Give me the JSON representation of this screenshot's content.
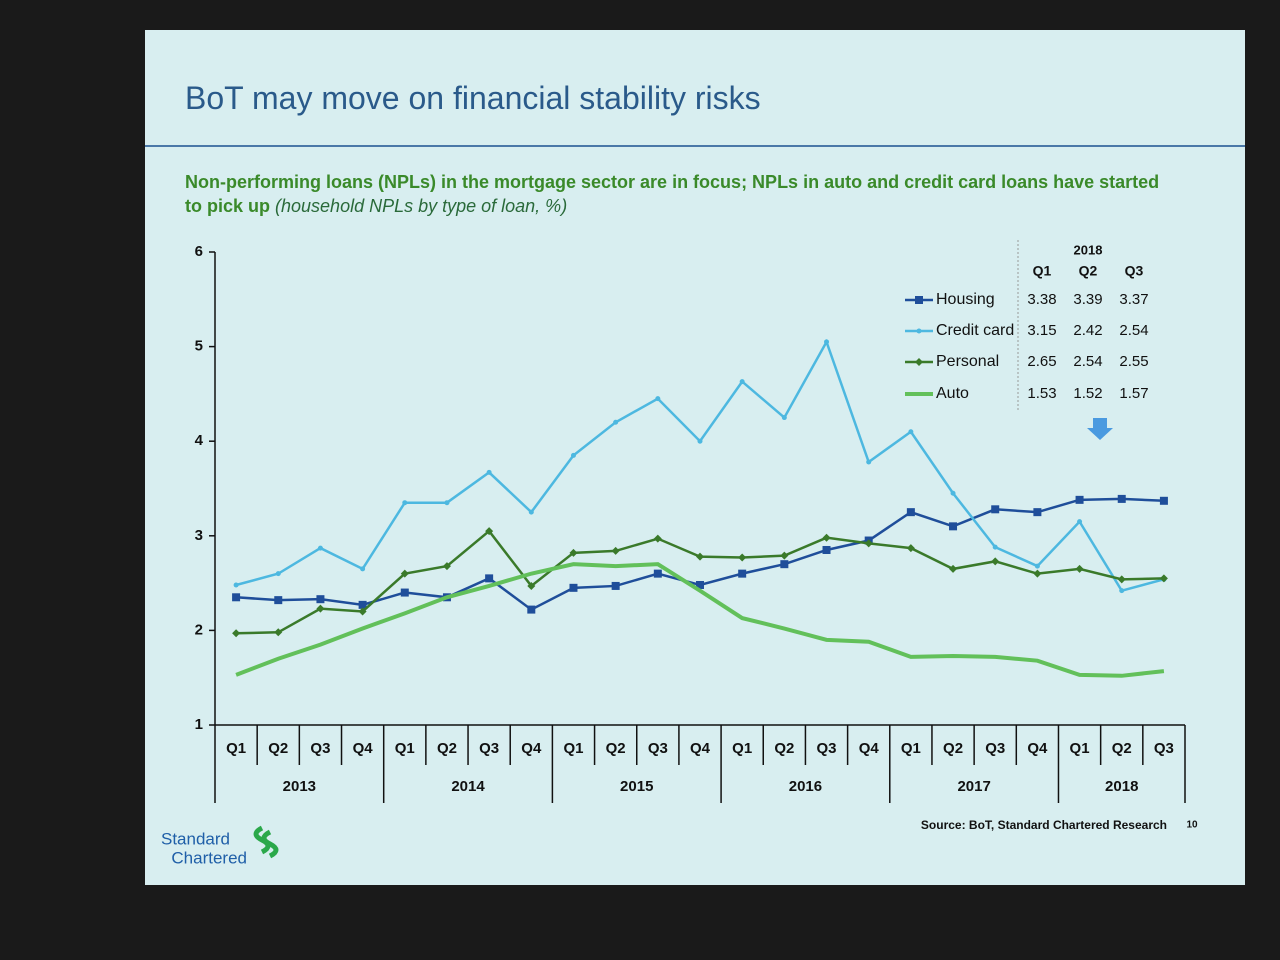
{
  "slide": {
    "title": "BoT may move on financial stability risks",
    "source": "Source: BoT, Standard Chartered Research",
    "page": 10,
    "logo": [
      "Standard",
      "Chartered"
    ]
  },
  "chart_data": {
    "type": "line",
    "subtitle": "Non-performing loans (NPLs) in the mortgage sector are in focus; NPLs in auto and credit card loans have started to pick up",
    "subtitle_note": "(household NPLs by type of loan, %)",
    "categories": [
      "Q1",
      "Q2",
      "Q3",
      "Q4",
      "Q1",
      "Q2",
      "Q3",
      "Q4",
      "Q1",
      "Q2",
      "Q3",
      "Q4",
      "Q1",
      "Q2",
      "Q3",
      "Q4",
      "Q1",
      "Q2",
      "Q3",
      "Q4",
      "Q1",
      "Q2",
      "Q3"
    ],
    "years": [
      "2013",
      "2014",
      "2015",
      "2016",
      "2017",
      "2018"
    ],
    "ylim": [
      1,
      6
    ],
    "yticks": [
      1,
      2,
      3,
      4,
      5,
      6
    ],
    "grid": false,
    "series": [
      {
        "name": "Housing",
        "color": "#1f4e9a",
        "marker": "square",
        "values": [
          2.35,
          2.32,
          2.33,
          2.27,
          2.4,
          2.35,
          2.55,
          2.22,
          2.45,
          2.47,
          2.6,
          2.48,
          2.6,
          2.7,
          2.85,
          2.95,
          3.25,
          3.1,
          3.28,
          3.25,
          3.38,
          3.39,
          3.37
        ]
      },
      {
        "name": "Credit card",
        "color": "#4db8e0",
        "marker": "dot",
        "values": [
          2.48,
          2.6,
          2.87,
          2.65,
          3.35,
          3.35,
          3.67,
          3.25,
          3.85,
          4.2,
          4.45,
          4.0,
          4.63,
          4.25,
          5.05,
          3.78,
          4.1,
          3.45,
          2.88,
          2.68,
          3.15,
          2.42,
          2.54
        ]
      },
      {
        "name": "Personal",
        "color": "#3a7a2a",
        "marker": "diamond",
        "values": [
          1.97,
          1.98,
          2.23,
          2.2,
          2.6,
          2.68,
          3.05,
          2.47,
          2.82,
          2.84,
          2.97,
          2.78,
          2.77,
          2.79,
          2.98,
          2.92,
          2.87,
          2.65,
          2.73,
          2.6,
          2.65,
          2.54,
          2.55
        ]
      },
      {
        "name": "Auto",
        "color": "#62c05a",
        "marker": "none",
        "values": [
          1.53,
          1.7,
          1.85,
          2.02,
          2.18,
          2.35,
          2.47,
          2.6,
          2.7,
          2.68,
          2.7,
          2.42,
          2.13,
          2.02,
          1.9,
          1.88,
          1.72,
          1.73,
          1.72,
          1.68,
          1.53,
          1.52,
          1.57
        ]
      }
    ],
    "table": {
      "year": "2018",
      "columns": [
        "Q1",
        "Q2",
        "Q3"
      ],
      "rows": [
        [
          3.38,
          3.39,
          3.37
        ],
        [
          3.15,
          2.42,
          2.54
        ],
        [
          2.65,
          2.54,
          2.55
        ],
        [
          1.53,
          1.52,
          1.57
        ]
      ]
    }
  }
}
